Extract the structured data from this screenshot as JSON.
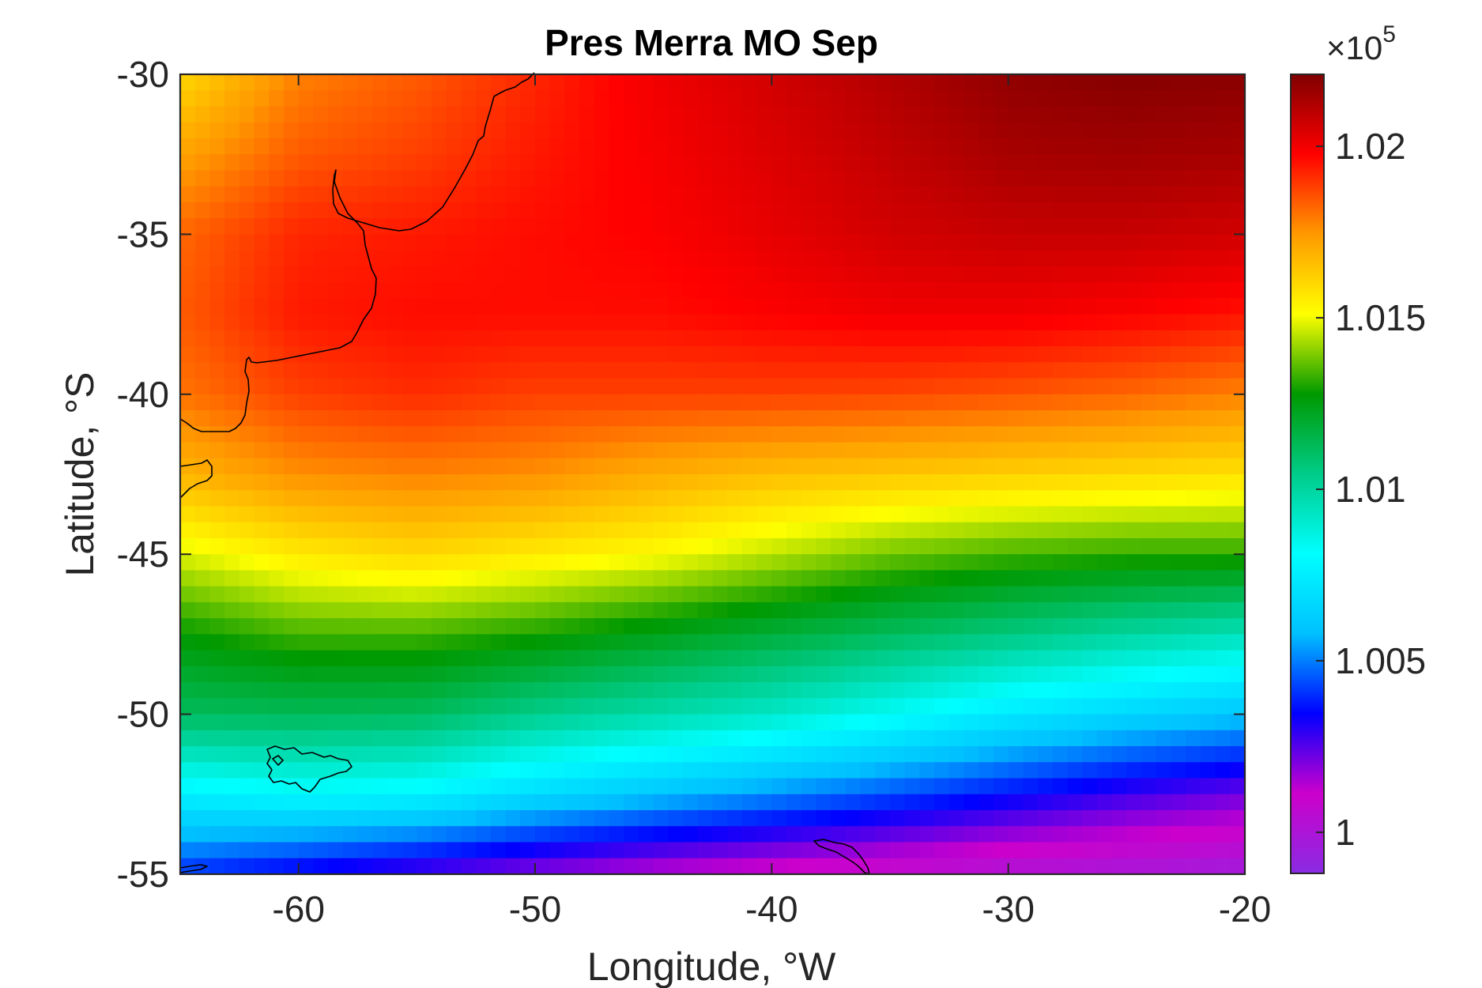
{
  "chart_data": {
    "type": "heatmap",
    "title": "Pres Merra MO Sep",
    "xlabel": "Longitude, °W",
    "ylabel": "Latitude, °S",
    "xlim": [
      -65,
      -20
    ],
    "ylim": [
      -55,
      -30
    ],
    "x_ticks": [
      -60,
      -50,
      -40,
      -30,
      -20
    ],
    "x_tick_labels": [
      "-60",
      "-50",
      "-40",
      "-30",
      "-20"
    ],
    "y_ticks": [
      -30,
      -35,
      -40,
      -45,
      -50,
      -55
    ],
    "y_tick_labels": [
      "-30",
      "-35",
      "-40",
      "-45",
      "-50",
      "-55"
    ],
    "colorbar": {
      "clim": [
        0.9988,
        1.0221
      ],
      "ticks": [
        1.0,
        1.005,
        1.01,
        1.015,
        1.02
      ],
      "tick_labels": [
        "1",
        "1.005",
        "1.01",
        "1.015",
        "1.02"
      ],
      "multiplier_text": "×10",
      "multiplier_exponent": "5",
      "colormap": [
        "#8a2be2",
        "#cc00cc",
        "#0000ff",
        "#00c0ff",
        "#00ffff",
        "#00cc88",
        "#009900",
        "#ffff00",
        "#ff9900",
        "#ff0000",
        "#800000"
      ]
    },
    "grid": false,
    "field_description": "Gridded mean sea-level pressure (units of 1e5 Pa); values read from colorbar, rising from ~1.000 in the south to ~1.022 in the north-east.",
    "field_anchor_latitudes": [
      -30,
      -32.5,
      -35,
      -37.5,
      -40,
      -42.5,
      -45,
      -47.5,
      -50,
      -52.5,
      -55
    ],
    "field_anchor_longitudes": [
      -65,
      -60,
      -55,
      -50,
      -45,
      -40,
      -35,
      -30,
      -25,
      -20
    ],
    "field_anchor_values": [
      [
        1.016,
        1.0178,
        1.0184,
        1.0192,
        1.02,
        1.0206,
        1.0212,
        1.0218,
        1.022,
        1.0219
      ],
      [
        1.0172,
        1.0184,
        1.0188,
        1.0194,
        1.0199,
        1.0204,
        1.0209,
        1.0214,
        1.0215,
        1.0214
      ],
      [
        1.0182,
        1.0192,
        1.0194,
        1.0196,
        1.0198,
        1.0202,
        1.0206,
        1.0208,
        1.0208,
        1.0206
      ],
      [
        1.0184,
        1.0194,
        1.0196,
        1.0196,
        1.0196,
        1.0198,
        1.02,
        1.02,
        1.0198,
        1.0195
      ],
      [
        1.018,
        1.0188,
        1.0191,
        1.0188,
        1.0188,
        1.0188,
        1.0187,
        1.0185,
        1.0182,
        1.0178
      ],
      [
        1.0168,
        1.0176,
        1.0178,
        1.0176,
        1.017,
        1.0166,
        1.0164,
        1.0162,
        1.016,
        1.0158
      ],
      [
        1.0148,
        1.0156,
        1.016,
        1.0156,
        1.0152,
        1.0145,
        1.0138,
        1.0134,
        1.0132,
        1.0132
      ],
      [
        1.0128,
        1.0134,
        1.0134,
        1.013,
        1.0124,
        1.0118,
        1.0112,
        1.0106,
        1.01,
        1.0095
      ],
      [
        1.0112,
        1.0113,
        1.0112,
        1.0104,
        1.0098,
        1.0092,
        1.0083,
        1.0073,
        1.0066,
        1.006
      ],
      [
        1.0076,
        1.008,
        1.0078,
        1.0068,
        1.006,
        1.0052,
        1.0044,
        1.0036,
        1.0028,
        1.0022
      ],
      [
        1.004,
        1.0032,
        1.0025,
        1.0018,
        1.0012,
        1.0008,
        1.0004,
        1.0,
        0.9998,
        0.9996
      ]
    ],
    "coastline_color": "#000000"
  }
}
